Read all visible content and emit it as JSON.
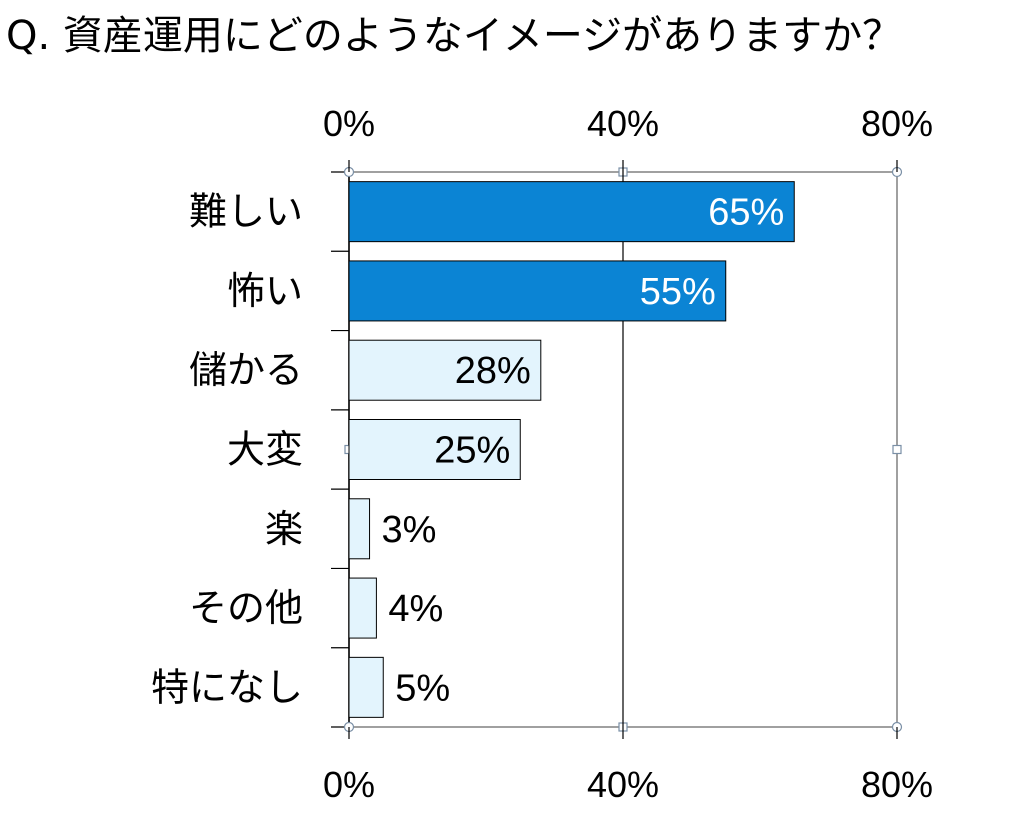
{
  "question": "Q. 資産運用にどのようなイメージがありますか？",
  "chart_data": {
    "type": "bar",
    "orientation": "horizontal",
    "categories": [
      "難しい",
      "怖い",
      "儲かる",
      "大変",
      "楽",
      "その他",
      "特になし"
    ],
    "values": [
      65,
      55,
      28,
      25,
      3,
      4,
      5
    ],
    "value_labels": [
      "65%",
      "55%",
      "28%",
      "25%",
      "3%",
      "4%",
      "5%"
    ],
    "highlight": [
      true,
      true,
      false,
      false,
      false,
      false,
      false
    ],
    "xlim": [
      0,
      80
    ],
    "x_ticks": [
      0,
      40,
      80
    ],
    "x_tick_labels": [
      "0%",
      "40%",
      "80%"
    ],
    "axis_labels_top_and_bottom": true,
    "grid": "vertical at 40%",
    "legend": "none",
    "colors": {
      "highlight_fill": "#0b84d4",
      "normal_fill": "#e3f4fd",
      "bar_stroke": "#000000",
      "highlight_label": "#ffffff",
      "normal_label": "#000000",
      "frame": "#808080"
    }
  }
}
